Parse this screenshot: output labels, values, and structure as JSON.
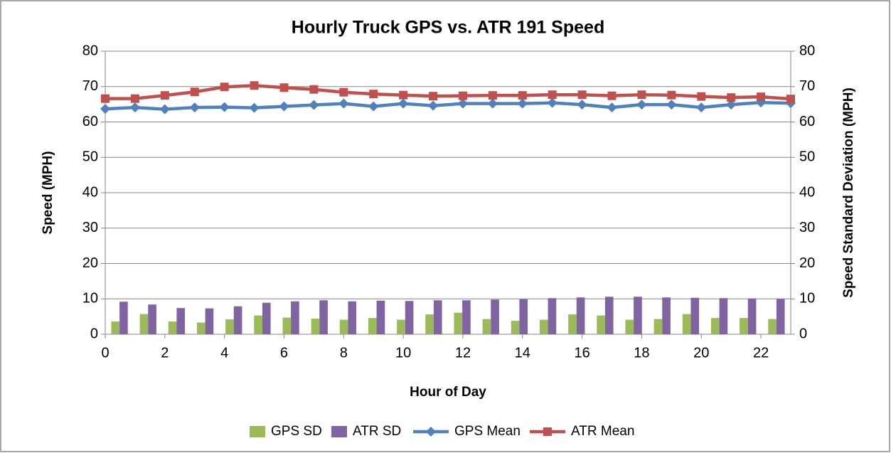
{
  "chart_data": {
    "type": "combo",
    "title": "Hourly Truck GPS vs. ATR 191 Speed",
    "x_label": "Hour of Day",
    "y_label": "Speed (MPH)",
    "y2_label": "Speed Standard Deviation (MPH)",
    "x": [
      0,
      1,
      2,
      3,
      4,
      5,
      6,
      7,
      8,
      9,
      10,
      11,
      12,
      13,
      14,
      15,
      16,
      17,
      18,
      19,
      20,
      21,
      22,
      23
    ],
    "xlim": [
      0,
      23
    ],
    "xticks": [
      0,
      2,
      4,
      6,
      8,
      10,
      12,
      14,
      16,
      18,
      20,
      22
    ],
    "ylim": [
      0,
      80
    ],
    "yticks": [
      0,
      10,
      20,
      30,
      40,
      50,
      60,
      70,
      80
    ],
    "y2lim": [
      0,
      80
    ],
    "y2ticks": [
      0,
      10,
      20,
      30,
      40,
      50,
      60,
      70,
      80
    ],
    "grid": true,
    "legend": "bottom",
    "series": [
      {
        "name": "GPS SD",
        "type": "bar",
        "axis": "y2",
        "color": "#9bbb59",
        "values": [
          3.6,
          5.7,
          3.6,
          3.3,
          4.2,
          5.3,
          4.7,
          4.4,
          4.1,
          4.6,
          4.1,
          5.6,
          6.1,
          4.3,
          3.8,
          4.1,
          5.6,
          5.3,
          4.1,
          4.3,
          5.7,
          4.6,
          4.6,
          4.3
        ]
      },
      {
        "name": "ATR SD",
        "type": "bar",
        "axis": "y2",
        "color": "#8064a2",
        "values": [
          9.2,
          8.4,
          7.4,
          7.3,
          7.9,
          8.9,
          9.3,
          9.6,
          9.3,
          9.5,
          9.4,
          9.6,
          9.6,
          9.8,
          9.9,
          10.2,
          10.4,
          10.6,
          10.6,
          10.4,
          10.3,
          10.2,
          10.1,
          10.0
        ]
      },
      {
        "name": "GPS Mean",
        "type": "line",
        "marker": "diamond",
        "color": "#4f81bd",
        "values": [
          63.7,
          64.1,
          63.6,
          64.1,
          64.2,
          64.0,
          64.4,
          64.8,
          65.2,
          64.4,
          65.2,
          64.6,
          65.2,
          65.2,
          65.2,
          65.4,
          64.9,
          64.1,
          64.9,
          64.9,
          64.1,
          64.9,
          65.5,
          65.3
        ]
      },
      {
        "name": "ATR Mean",
        "type": "line",
        "marker": "square",
        "color": "#c0504d",
        "values": [
          66.6,
          66.6,
          67.5,
          68.5,
          69.9,
          70.3,
          69.7,
          69.2,
          68.4,
          67.9,
          67.6,
          67.3,
          67.4,
          67.5,
          67.5,
          67.7,
          67.7,
          67.4,
          67.7,
          67.6,
          67.2,
          66.9,
          67.1,
          66.5
        ]
      }
    ]
  }
}
